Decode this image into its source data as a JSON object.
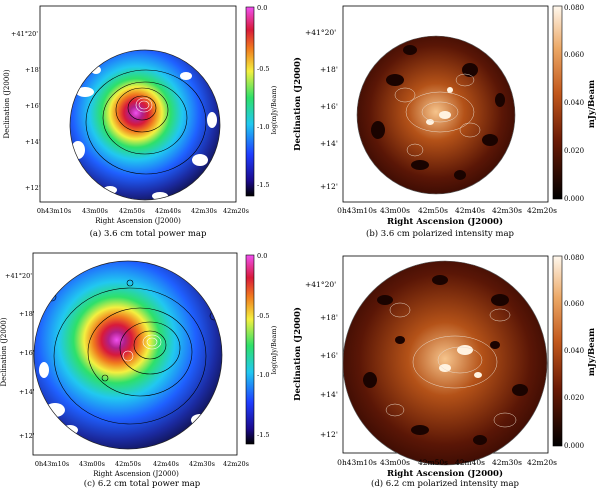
{
  "figure": {
    "panels": [
      {
        "id": "a",
        "caption": "(a) 3.6 cm total power map",
        "ylabel": "Declination (J2000)",
        "xlabel": "Right Ascension (J2000)",
        "yticks": [
          "+41°20'",
          "+18'",
          "+16'",
          "+14'",
          "+12'"
        ],
        "xticks": [
          "0h43m10s",
          "43m00s",
          "42m50s",
          "42m40s",
          "42m30s",
          "42m20s"
        ],
        "colorbar_label": "log(mJy/Beam)",
        "colorbar_ticks": [
          "0.0",
          "-0.5",
          "-1.0",
          "-1.5"
        ],
        "colormap": "rainbow"
      },
      {
        "id": "b",
        "caption": "(b)  3.6 cm polarized intensity map",
        "ylabel": "Declination (J2000)",
        "xlabel": "Right Ascension (J2000)",
        "yticks": [
          "+41°20'",
          "+18'",
          "+16'",
          "+14'",
          "+12'"
        ],
        "xticks": [
          "0h43m10s",
          "43m00s",
          "42m50s",
          "42m40s",
          "42m30s",
          "42m20s"
        ],
        "colorbar_label": "mJy/Beam",
        "colorbar_ticks": [
          "0.080",
          "0.060",
          "0.040",
          "0.020",
          "0.000"
        ],
        "colormap": "heat"
      },
      {
        "id": "c",
        "caption": "(c) 6.2 cm total power map",
        "ylabel": "Declination (J2000)",
        "xlabel": "Right Ascension (J2000)",
        "yticks": [
          "+41°20'",
          "+18'",
          "+16'",
          "+14'",
          "+12'"
        ],
        "xticks": [
          "0h43m10s",
          "43m00s",
          "42m50s",
          "42m40s",
          "42m30s",
          "42m20s"
        ],
        "colorbar_label": "log(mJy/Beam)",
        "colorbar_ticks": [
          "0.0",
          "-0.5",
          "-1.0",
          "-1.5"
        ],
        "colormap": "rainbow"
      },
      {
        "id": "d",
        "caption": "(d)  6.2 cm polarized intensity map",
        "ylabel": "Declination (J2000)",
        "xlabel": "Right Ascension (J2000)",
        "yticks": [
          "+41°20'",
          "+18'",
          "+16'",
          "+14'",
          "+12'"
        ],
        "xticks": [
          "0h43m10s",
          "43m00s",
          "42m50s",
          "42m40s",
          "42m30s",
          "42m20s"
        ],
        "colorbar_label": "mJy/Beam",
        "colorbar_ticks": [
          "0.080",
          "0.060",
          "0.040",
          "0.020",
          "0.000"
        ],
        "colormap": "heat"
      }
    ]
  }
}
